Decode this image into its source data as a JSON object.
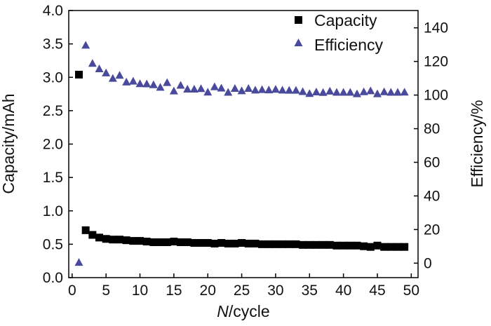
{
  "chart_data": {
    "type": "scatter",
    "title": "",
    "xlabel_italic": "N",
    "xlabel_rest": "/cycle",
    "ylabel": "Capacity/mAh",
    "y2label": "Efficiency/%",
    "xlim": [
      -0.5,
      51
    ],
    "ylim": [
      0.0,
      4.0
    ],
    "y2lim": [
      -8.6,
      150.3
    ],
    "xticks": [
      0,
      5,
      10,
      15,
      20,
      25,
      30,
      35,
      40,
      45,
      50
    ],
    "yticks": [
      0.0,
      0.5,
      1.0,
      1.5,
      2.0,
      2.5,
      3.0,
      3.5,
      4.0
    ],
    "y2ticks": [
      0,
      20,
      40,
      60,
      80,
      100,
      120,
      140
    ],
    "legend_position": "top-right",
    "series": [
      {
        "name": "Capacity",
        "axis": "left",
        "marker": "square",
        "color": "#000000",
        "x": [
          1,
          2,
          3,
          4,
          5,
          6,
          7,
          8,
          9,
          10,
          11,
          12,
          13,
          14,
          15,
          16,
          17,
          18,
          19,
          20,
          21,
          22,
          23,
          24,
          25,
          26,
          27,
          28,
          29,
          30,
          31,
          32,
          33,
          34,
          35,
          36,
          37,
          38,
          39,
          40,
          41,
          42,
          43,
          44,
          45,
          46,
          47,
          48,
          49
        ],
        "values": [
          3.04,
          0.71,
          0.64,
          0.6,
          0.58,
          0.57,
          0.57,
          0.56,
          0.55,
          0.55,
          0.54,
          0.53,
          0.53,
          0.53,
          0.54,
          0.53,
          0.53,
          0.52,
          0.52,
          0.52,
          0.51,
          0.52,
          0.51,
          0.51,
          0.52,
          0.51,
          0.51,
          0.5,
          0.5,
          0.5,
          0.5,
          0.5,
          0.5,
          0.49,
          0.49,
          0.49,
          0.49,
          0.49,
          0.48,
          0.48,
          0.48,
          0.48,
          0.47,
          0.46,
          0.48,
          0.46,
          0.46,
          0.46,
          0.46
        ]
      },
      {
        "name": "Efficiency",
        "axis": "right",
        "marker": "triangle",
        "color": "#4a4a9c",
        "x": [
          1,
          2,
          3,
          4,
          5,
          6,
          7,
          8,
          9,
          10,
          11,
          12,
          13,
          14,
          15,
          16,
          17,
          18,
          19,
          20,
          21,
          22,
          23,
          24,
          25,
          26,
          27,
          28,
          29,
          30,
          31,
          32,
          33,
          34,
          35,
          36,
          37,
          38,
          39,
          40,
          41,
          42,
          43,
          44,
          45,
          46,
          47,
          48,
          49
        ],
        "values": [
          0.3,
          129.5,
          118.7,
          115.5,
          113.0,
          109.8,
          111.6,
          107.6,
          108.1,
          106.6,
          106.5,
          106.0,
          104.5,
          107.3,
          102.3,
          105.7,
          103.4,
          103.4,
          103.7,
          101.6,
          104.8,
          104.0,
          101.5,
          103.8,
          102.4,
          103.8,
          102.8,
          103.1,
          102.9,
          103.3,
          102.8,
          102.7,
          102.7,
          101.9,
          100.8,
          101.7,
          101.4,
          102.2,
          101.5,
          101.5,
          101.5,
          100.6,
          101.8,
          102.4,
          100.6,
          101.8,
          101.5,
          101.5,
          101.6
        ]
      }
    ]
  }
}
